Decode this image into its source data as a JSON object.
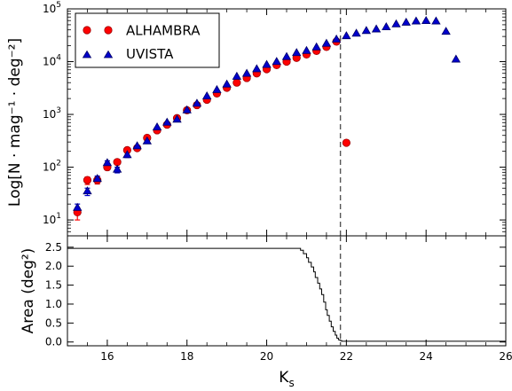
{
  "chart_data": [
    {
      "type": "scatter",
      "panel": "top",
      "ylabel": "Log[N · mag⁻¹ · deg⁻²]",
      "yscale": "log",
      "ylim": [
        5,
        100000
      ],
      "xlim": [
        15,
        26
      ],
      "y_ticks": [
        {
          "value": 10,
          "base": "10",
          "exp": "1"
        },
        {
          "value": 100,
          "base": "10",
          "exp": "2"
        },
        {
          "value": 1000,
          "base": "10",
          "exp": "3"
        },
        {
          "value": 10000,
          "base": "10",
          "exp": "4"
        },
        {
          "value": 100000,
          "base": "10",
          "exp": "5"
        }
      ],
      "vline_x": 21.85,
      "legend": {
        "placement": "top-left"
      },
      "series": [
        {
          "name": "ALHAMBRA",
          "marker": "circle",
          "color": "#ff0000",
          "edge": "#a00000",
          "x": [
            15.25,
            15.5,
            15.75,
            16.0,
            16.25,
            16.5,
            16.75,
            17.0,
            17.25,
            17.5,
            17.75,
            18.0,
            18.25,
            18.5,
            18.75,
            19.0,
            19.25,
            19.5,
            19.75,
            20.0,
            20.25,
            20.5,
            20.75,
            21.0,
            21.25,
            21.5,
            21.75,
            22.0
          ],
          "y": [
            14,
            57,
            57,
            100,
            125,
            210,
            230,
            360,
            500,
            640,
            850,
            1200,
            1500,
            1900,
            2500,
            3200,
            4000,
            4900,
            6000,
            7200,
            8600,
            10000,
            11800,
            13700,
            16000,
            19000,
            24000,
            290
          ],
          "yerr_low": [
            4,
            10,
            9,
            12,
            14,
            18,
            18,
            25,
            30,
            35,
            40,
            50,
            0,
            0,
            0,
            0,
            0,
            0,
            0,
            0,
            0,
            0,
            0,
            0,
            0,
            0,
            0,
            0
          ],
          "yerr_high": [
            3,
            8,
            8,
            12,
            14,
            18,
            18,
            25,
            30,
            35,
            40,
            50,
            0,
            0,
            0,
            0,
            0,
            0,
            0,
            0,
            0,
            0,
            0,
            0,
            0,
            0,
            0,
            0
          ]
        },
        {
          "name": "UVISTA",
          "marker": "triangle",
          "color": "#0000cc",
          "edge": "#000066",
          "x": [
            15.25,
            15.5,
            15.75,
            16.0,
            16.25,
            16.5,
            16.75,
            17.0,
            17.25,
            17.5,
            17.75,
            18.0,
            18.25,
            18.5,
            18.75,
            19.0,
            19.25,
            19.5,
            19.75,
            20.0,
            20.25,
            20.5,
            20.75,
            21.0,
            21.25,
            21.5,
            21.75,
            22.0,
            22.25,
            22.5,
            22.75,
            23.0,
            23.25,
            23.5,
            23.75,
            24.0,
            24.25,
            24.5,
            24.75
          ],
          "y": [
            17,
            35,
            60,
            120,
            90,
            170,
            250,
            310,
            570,
            700,
            800,
            1200,
            1600,
            2200,
            2900,
            3700,
            5200,
            5900,
            7200,
            8700,
            9900,
            12300,
            14600,
            16000,
            18700,
            21900,
            26300,
            30500,
            34000,
            38300,
            41000,
            45000,
            51000,
            55000,
            58000,
            59000,
            58000,
            37000,
            11000
          ],
          "yerr_low": [
            4,
            6,
            9,
            14,
            12,
            18,
            0,
            0,
            0,
            0,
            0,
            0,
            0,
            0,
            0,
            0,
            0,
            0,
            0,
            0,
            0,
            0,
            0,
            0,
            0,
            0,
            0,
            0,
            0,
            0,
            0,
            0,
            0,
            0,
            0,
            0,
            0,
            0,
            0
          ],
          "yerr_high": [
            3,
            5,
            8,
            12,
            10,
            16,
            0,
            0,
            0,
            0,
            0,
            0,
            0,
            0,
            0,
            0,
            0,
            0,
            0,
            0,
            0,
            0,
            0,
            0,
            0,
            0,
            0,
            0,
            0,
            0,
            0,
            0,
            0,
            0,
            0,
            0,
            0,
            0,
            0
          ]
        }
      ]
    },
    {
      "type": "line",
      "panel": "bottom",
      "xlabel": "K",
      "xlabel_sub": "s",
      "ylabel": "Area (deg²)",
      "xlim": [
        15,
        26
      ],
      "ylim": [
        -0.1,
        2.8
      ],
      "x_ticks": [
        "16",
        "18",
        "20",
        "22",
        "24",
        "26"
      ],
      "x_tick_values": [
        16,
        18,
        20,
        22,
        24,
        26
      ],
      "y_ticks": [
        "0.0",
        "0.5",
        "1.0",
        "1.5",
        "2.0",
        "2.5"
      ],
      "y_tick_values": [
        0,
        0.5,
        1.0,
        1.5,
        2.0,
        2.5
      ],
      "vline_x": 21.85,
      "series": [
        {
          "x": [
            15.0,
            20.8,
            20.85,
            20.85,
            20.92,
            20.92,
            21.0,
            21.0,
            21.05,
            21.05,
            21.12,
            21.12,
            21.18,
            21.18,
            21.22,
            21.22,
            21.28,
            21.28,
            21.33,
            21.33,
            21.38,
            21.38,
            21.43,
            21.43,
            21.48,
            21.48,
            21.52,
            21.52,
            21.57,
            21.57,
            21.62,
            21.62,
            21.67,
            21.67,
            21.72,
            21.72,
            21.76,
            21.76,
            21.8,
            21.8,
            21.84,
            21.84,
            21.88,
            21.88,
            21.95,
            21.95,
            26.0
          ],
          "y": [
            2.47,
            2.47,
            2.47,
            2.42,
            2.42,
            2.33,
            2.33,
            2.22,
            2.22,
            2.1,
            2.1,
            1.98,
            1.98,
            1.85,
            1.85,
            1.7,
            1.7,
            1.55,
            1.55,
            1.4,
            1.4,
            1.25,
            1.25,
            1.05,
            1.05,
            0.85,
            0.85,
            0.7,
            0.7,
            0.55,
            0.55,
            0.4,
            0.4,
            0.28,
            0.28,
            0.18,
            0.18,
            0.1,
            0.1,
            0.06,
            0.06,
            0.04,
            0.04,
            0.02,
            0.02,
            0.02,
            0.02
          ]
        }
      ]
    }
  ]
}
